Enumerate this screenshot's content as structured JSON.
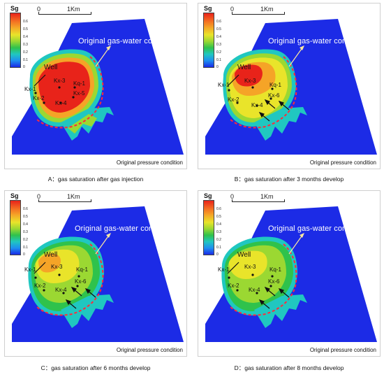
{
  "legend": {
    "title": "Sg",
    "ticks": [
      "0.6",
      "0.5",
      "0.4",
      "0.3",
      "0.2",
      "0.1",
      "0"
    ]
  },
  "scale_bar": {
    "start": "0",
    "end": "1Km"
  },
  "annotation": {
    "contact": "Original gas-water contact",
    "well": "Well"
  },
  "wells": [
    "Kx-1",
    "Kx-2",
    "Kx-3",
    "Kx-4",
    "Kx-5",
    "Kx-6",
    "Kq-1"
  ],
  "condition": "Original pressure condition",
  "colors": {
    "high": "#e8231a",
    "mid": "#e9e42a",
    "low": "#1a2ae6",
    "contact_line": "#ff2a3a"
  },
  "panels": [
    {
      "caption": "A：gas saturation after gas injection"
    },
    {
      "caption": "B：gas saturation after 3 months develop"
    },
    {
      "caption": "C：gas saturation after 6 months develop"
    },
    {
      "caption": "D：gas saturation after 8 months develop"
    }
  ]
}
